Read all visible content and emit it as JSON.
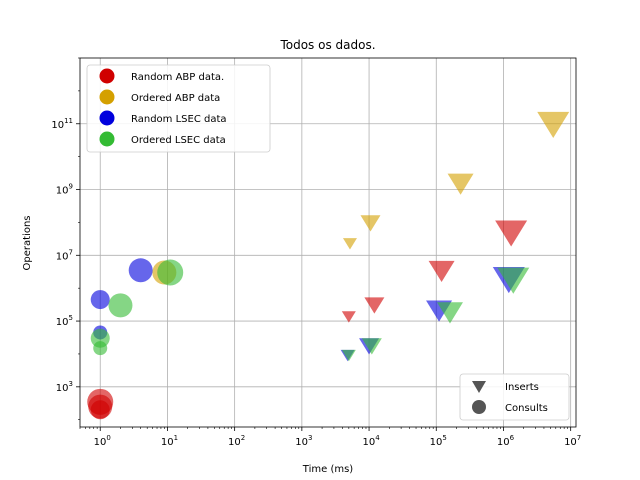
{
  "chart_data": {
    "type": "scatter",
    "title": "Todos os dados.",
    "xlabel": "Time (ms)",
    "ylabel": "Operations",
    "xscale": "log",
    "yscale": "log",
    "xlim": [
      0.5,
      12000000
    ],
    "ylim": [
      60,
      10000000000000
    ],
    "x_major_ticks": [
      1,
      10,
      100,
      1000,
      10000,
      100000,
      1000000,
      10000000
    ],
    "y_major_ticks": [
      1000,
      100000,
      10000000,
      1000000000,
      100000000000
    ],
    "x_tick_labels": [
      {
        "base": "10",
        "exp": "0"
      },
      {
        "base": "10",
        "exp": "1"
      },
      {
        "base": "10",
        "exp": "2"
      },
      {
        "base": "10",
        "exp": "3"
      },
      {
        "base": "10",
        "exp": "4"
      },
      {
        "base": "10",
        "exp": "5"
      },
      {
        "base": "10",
        "exp": "6"
      },
      {
        "base": "10",
        "exp": "7"
      }
    ],
    "y_tick_labels": [
      {
        "base": "10",
        "exp": "3"
      },
      {
        "base": "10",
        "exp": "5"
      },
      {
        "base": "10",
        "exp": "7"
      },
      {
        "base": "10",
        "exp": "9"
      },
      {
        "base": "10",
        "exp": "11"
      }
    ],
    "grid": true,
    "legend": {
      "placement": "upper left",
      "entries": [
        {
          "label": "Random ABP data.",
          "color": "#d00000"
        },
        {
          "label": "Ordered ABP data",
          "color": "#d4a000"
        },
        {
          "label": "Random LSEC data",
          "color": "#0000dd"
        },
        {
          "label": "Ordered LSEC data",
          "color": "#33bb33"
        }
      ]
    },
    "marker_legend": {
      "placement": "lower right",
      "entries": [
        {
          "label": "Inserts",
          "marker": "triangle-down"
        },
        {
          "label": "Consults",
          "marker": "circle"
        }
      ]
    },
    "series": [
      {
        "name": "Random ABP data.",
        "color": "#d00000",
        "inserts": [
          {
            "x": 5000,
            "y": 150000,
            "size": 1
          },
          {
            "x": 12000,
            "y": 350000,
            "size": 2
          },
          {
            "x": 120000,
            "y": 4000000,
            "size": 3
          },
          {
            "x": 1300000,
            "y": 60000000,
            "size": 4
          }
        ],
        "consults": [
          {
            "x": 1,
            "y": 200,
            "size": 2
          },
          {
            "x": 1,
            "y": 250,
            "size": 3
          },
          {
            "x": 1,
            "y": 350,
            "size": 4
          }
        ]
      },
      {
        "name": "Ordered ABP data",
        "color": "#d4a000",
        "inserts": [
          {
            "x": 5200,
            "y": 25000000,
            "size": 1
          },
          {
            "x": 10500,
            "y": 110000000,
            "size": 2
          },
          {
            "x": 230000,
            "y": 1800000000,
            "size": 3
          },
          {
            "x": 5500000,
            "y": 120000000000,
            "size": 4
          }
        ],
        "consults": [
          {
            "x": 9,
            "y": 3000000,
            "size": 3
          }
        ]
      },
      {
        "name": "Random LSEC data",
        "color": "#0000dd",
        "inserts": [
          {
            "x": 4800,
            "y": 10000,
            "size": 1
          },
          {
            "x": 10000,
            "y": 20000,
            "size": 2
          },
          {
            "x": 110000,
            "y": 250000,
            "size": 3
          },
          {
            "x": 1200000,
            "y": 2300000,
            "size": 4
          }
        ],
        "consults": [
          {
            "x": 1,
            "y": 45000,
            "size": 1
          },
          {
            "x": 1,
            "y": 450000,
            "size": 2
          },
          {
            "x": 4,
            "y": 3500000,
            "size": 3
          }
        ]
      },
      {
        "name": "Ordered LSEC data",
        "color": "#33bb33",
        "inserts": [
          {
            "x": 5000,
            "y": 10000,
            "size": 1
          },
          {
            "x": 11000,
            "y": 20000,
            "size": 2
          },
          {
            "x": 160000,
            "y": 220000,
            "size": 3
          },
          {
            "x": 1400000,
            "y": 2200000,
            "size": 4
          }
        ],
        "consults": [
          {
            "x": 1,
            "y": 15000,
            "size": 1
          },
          {
            "x": 1,
            "y": 30000,
            "size": 2
          },
          {
            "x": 2,
            "y": 300000,
            "size": 3
          },
          {
            "x": 11,
            "y": 3000000,
            "size": 4
          }
        ]
      }
    ]
  }
}
